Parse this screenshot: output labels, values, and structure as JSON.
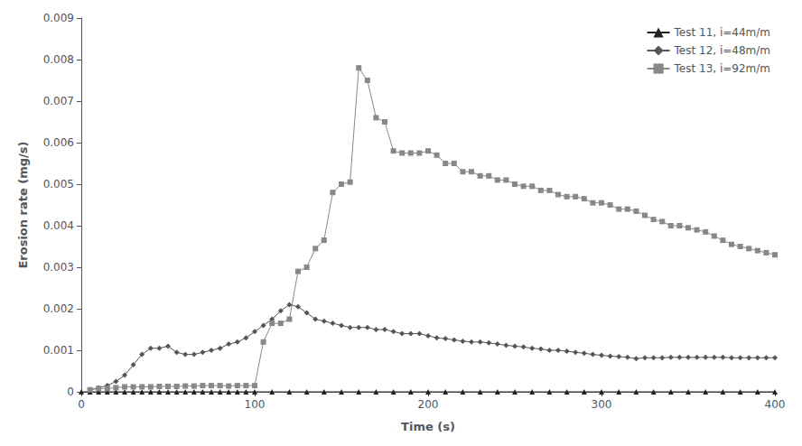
{
  "chart_data": {
    "type": "line",
    "xlabel": "Time (s)",
    "ylabel": "Erosion rate (mg/s)",
    "series": [
      {
        "name": "Test 11, i=44m/m",
        "color": "#222222",
        "marker": "triangle",
        "line_style": "solid",
        "x": [
          0,
          5,
          10,
          15,
          20,
          25,
          30,
          35,
          40,
          45,
          50,
          55,
          60,
          65,
          70,
          75,
          80,
          85,
          90,
          95,
          100,
          110,
          120,
          130,
          140,
          150,
          160,
          170,
          180,
          190,
          200,
          210,
          220,
          230,
          240,
          250,
          260,
          270,
          280,
          290,
          300,
          310,
          320,
          330,
          340,
          350,
          360,
          370,
          380,
          390,
          400
        ],
        "values": [
          0,
          0,
          0,
          0,
          0,
          0,
          0,
          0,
          0,
          0,
          0,
          0,
          0,
          0,
          0,
          0,
          0,
          0,
          0,
          0,
          0,
          0,
          0,
          0,
          0,
          0,
          0,
          0,
          0,
          0,
          0,
          0,
          0,
          0,
          0,
          0,
          0,
          0,
          0,
          0,
          0,
          0,
          0,
          0,
          0,
          0,
          0,
          0,
          0,
          0,
          0
        ]
      },
      {
        "name": "Test 12, i=48m/m",
        "color": "#555555",
        "marker": "diamond",
        "line_style": "solid",
        "x": [
          5,
          10,
          15,
          20,
          25,
          30,
          35,
          40,
          45,
          50,
          55,
          60,
          65,
          70,
          75,
          80,
          85,
          90,
          95,
          100,
          105,
          110,
          115,
          120,
          125,
          130,
          135,
          140,
          145,
          150,
          155,
          160,
          165,
          170,
          175,
          180,
          185,
          190,
          195,
          200,
          205,
          210,
          215,
          220,
          225,
          230,
          235,
          240,
          245,
          250,
          255,
          260,
          265,
          270,
          275,
          280,
          285,
          290,
          295,
          300,
          305,
          310,
          315,
          320,
          325,
          330,
          335,
          340,
          345,
          350,
          355,
          360,
          365,
          370,
          375,
          380,
          385,
          390,
          395,
          400
        ],
        "values": [
          5e-05,
          0.0001,
          0.00015,
          0.00025,
          0.0004,
          0.00065,
          0.0009,
          0.00105,
          0.00105,
          0.0011,
          0.00095,
          0.0009,
          0.0009,
          0.00095,
          0.001,
          0.00105,
          0.00115,
          0.0012,
          0.0013,
          0.00145,
          0.0016,
          0.00175,
          0.00195,
          0.0021,
          0.00205,
          0.0019,
          0.00175,
          0.0017,
          0.00165,
          0.0016,
          0.00155,
          0.00155,
          0.00155,
          0.0015,
          0.0015,
          0.00145,
          0.0014,
          0.0014,
          0.0014,
          0.00135,
          0.0013,
          0.00128,
          0.00125,
          0.00122,
          0.0012,
          0.0012,
          0.00118,
          0.00115,
          0.00112,
          0.0011,
          0.00108,
          0.00105,
          0.00103,
          0.001,
          0.001,
          0.00098,
          0.00095,
          0.00093,
          0.0009,
          0.00088,
          0.00086,
          0.00085,
          0.00083,
          0.0008,
          0.00082,
          0.00082,
          0.00082,
          0.00083,
          0.00083,
          0.00083,
          0.00083,
          0.00083,
          0.00083,
          0.00083,
          0.00082,
          0.00082,
          0.00082,
          0.00082,
          0.00082,
          0.00082
        ]
      },
      {
        "name": "Test 13, i=92m/m",
        "color": "#888888",
        "marker": "square",
        "line_style": "solid",
        "x": [
          5,
          10,
          15,
          20,
          25,
          30,
          35,
          40,
          45,
          50,
          55,
          60,
          65,
          70,
          75,
          80,
          85,
          90,
          95,
          100,
          105,
          110,
          115,
          120,
          125,
          130,
          135,
          140,
          145,
          150,
          155,
          160,
          165,
          170,
          175,
          180,
          185,
          190,
          195,
          200,
          205,
          210,
          215,
          220,
          225,
          230,
          235,
          240,
          245,
          250,
          255,
          260,
          265,
          270,
          275,
          280,
          285,
          290,
          295,
          300,
          305,
          310,
          315,
          320,
          325,
          330,
          335,
          340,
          345,
          350,
          355,
          360,
          365,
          370,
          375,
          380,
          385,
          390,
          395,
          400
        ],
        "values": [
          5e-05,
          8e-05,
          8e-05,
          0.0001,
          0.00012,
          0.00012,
          0.00012,
          0.00012,
          0.00013,
          0.00013,
          0.00013,
          0.00014,
          0.00014,
          0.00015,
          0.00015,
          0.00015,
          0.00014,
          0.00015,
          0.00015,
          0.00015,
          0.0012,
          0.00165,
          0.00165,
          0.00175,
          0.0029,
          0.003,
          0.00345,
          0.00365,
          0.0048,
          0.005,
          0.00505,
          0.0078,
          0.0075,
          0.0066,
          0.0065,
          0.0058,
          0.00575,
          0.00575,
          0.00575,
          0.0058,
          0.0057,
          0.0055,
          0.0055,
          0.0053,
          0.0053,
          0.0052,
          0.0052,
          0.0051,
          0.0051,
          0.005,
          0.00495,
          0.00495,
          0.00485,
          0.00485,
          0.00475,
          0.0047,
          0.0047,
          0.00465,
          0.00455,
          0.00455,
          0.0045,
          0.0044,
          0.0044,
          0.00435,
          0.00425,
          0.00415,
          0.0041,
          0.004,
          0.004,
          0.00395,
          0.0039,
          0.00385,
          0.00375,
          0.00365,
          0.00355,
          0.0035,
          0.00345,
          0.0034,
          0.00335,
          0.0033
        ]
      }
    ],
    "xlim": [
      0,
      400
    ],
    "ylim": [
      0,
      0.009
    ],
    "xticks": [
      0,
      100,
      200,
      300,
      400
    ],
    "yticks": [
      0,
      0.001,
      0.002,
      0.003,
      0.004,
      0.005,
      0.006,
      0.007,
      0.008,
      0.009
    ],
    "grid": false,
    "legend": "upper right"
  }
}
